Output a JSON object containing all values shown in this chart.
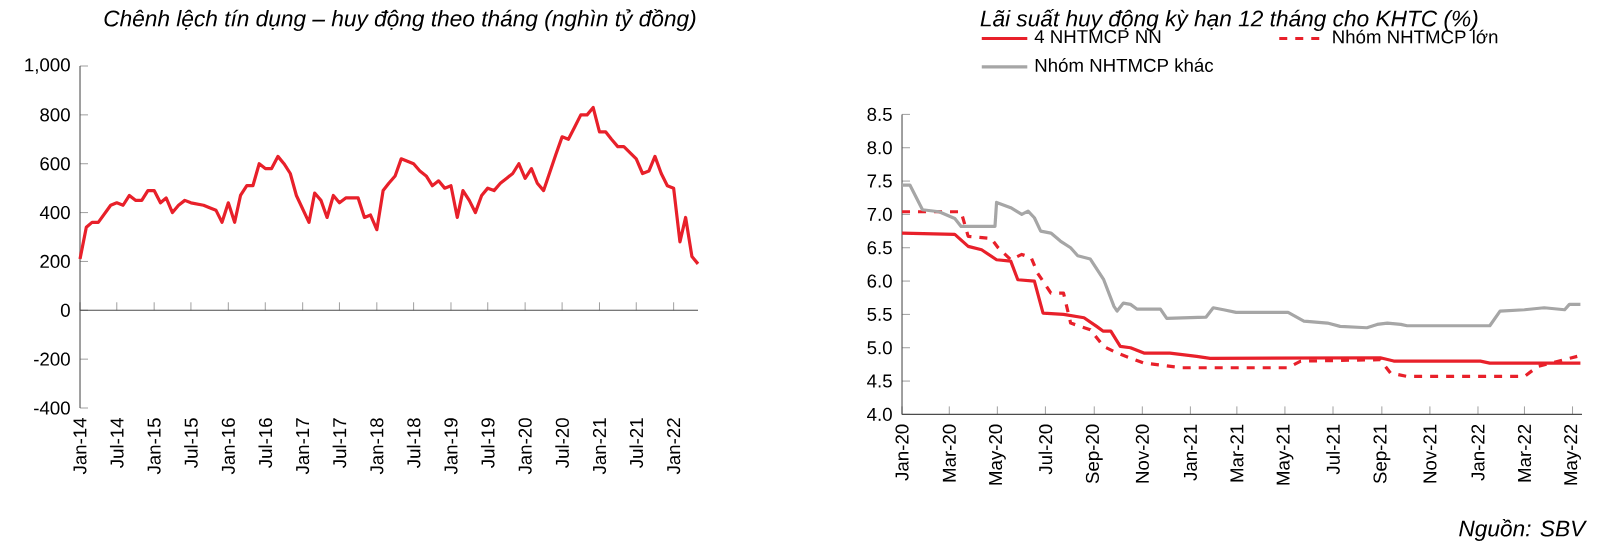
{
  "chart_data": [
    {
      "type": "line",
      "title": "Chênh lệch tín dụng – huy động theo tháng (nghìn tỷ đồng)",
      "color": "#e8202a",
      "x": [
        "2014-01",
        "2014-02",
        "2014-03",
        "2014-04",
        "2014-06",
        "2014-07",
        "2014-08",
        "2014-09",
        "2014-10",
        "2014-11",
        "2014-12",
        "2015-01",
        "2015-02",
        "2015-03",
        "2015-04",
        "2015-05",
        "2015-06",
        "2015-07",
        "2015-09",
        "2015-10",
        "2015-11",
        "2015-12",
        "2016-01",
        "2016-02",
        "2016-03",
        "2016-04",
        "2016-05",
        "2016-06",
        "2016-07",
        "2016-08",
        "2016-09",
        "2016-10",
        "2016-11",
        "2016-12",
        "2017-02",
        "2017-03",
        "2017-04",
        "2017-05",
        "2017-06",
        "2017-07",
        "2017-08",
        "2017-09",
        "2017-10",
        "2017-11",
        "2017-12",
        "2018-01",
        "2018-02",
        "2018-03",
        "2018-04",
        "2018-05",
        "2018-07",
        "2018-08",
        "2018-09",
        "2018-10",
        "2018-11",
        "2018-12",
        "2019-01",
        "2019-02",
        "2019-03",
        "2019-04",
        "2019-05",
        "2019-06",
        "2019-07",
        "2019-08",
        "2019-09",
        "2019-10",
        "2019-11",
        "2019-12",
        "2020-01",
        "2020-02",
        "2020-03",
        "2020-04",
        "2020-06",
        "2020-07",
        "2020-08",
        "2020-09",
        "2020-10",
        "2020-11",
        "2020-12",
        "2021-01",
        "2021-02",
        "2021-03",
        "2021-04",
        "2021-05",
        "2021-07",
        "2021-08",
        "2021-09",
        "2021-10",
        "2021-11",
        "2021-12",
        "2022-01",
        "2022-02",
        "2022-03",
        "2022-04",
        "2022-05"
      ],
      "values": [
        210,
        340,
        360,
        360,
        430,
        440,
        430,
        470,
        450,
        450,
        490,
        490,
        440,
        460,
        400,
        430,
        450,
        440,
        430,
        420,
        410,
        360,
        440,
        360,
        470,
        510,
        510,
        600,
        580,
        580,
        630,
        600,
        560,
        470,
        360,
        480,
        450,
        380,
        470,
        440,
        460,
        460,
        460,
        380,
        390,
        330,
        490,
        520,
        550,
        620,
        600,
        570,
        550,
        510,
        530,
        500,
        510,
        380,
        490,
        450,
        400,
        470,
        500,
        490,
        520,
        540,
        560,
        600,
        540,
        580,
        520,
        490,
        640,
        710,
        700,
        750,
        800,
        800,
        830,
        730,
        730,
        700,
        670,
        670,
        620,
        560,
        570,
        630,
        560,
        510,
        500,
        280,
        380,
        220,
        190
      ],
      "xlim": [
        "2014-01",
        "2022-05"
      ],
      "ylim": [
        -400,
        1000
      ],
      "xticks": [
        {
          "value": "2014-01",
          "label": "Jan-14"
        },
        {
          "value": "2014-07",
          "label": "Jul-14"
        },
        {
          "value": "2015-01",
          "label": "Jan-15"
        },
        {
          "value": "2015-07",
          "label": "Jul-15"
        },
        {
          "value": "2016-01",
          "label": "Jan-16"
        },
        {
          "value": "2016-07",
          "label": "Jul-16"
        },
        {
          "value": "2017-01",
          "label": "Jan-17"
        },
        {
          "value": "2017-07",
          "label": "Jul-17"
        },
        {
          "value": "2018-01",
          "label": "Jan-18"
        },
        {
          "value": "2018-07",
          "label": "Jul-18"
        },
        {
          "value": "2019-01",
          "label": "Jan-19"
        },
        {
          "value": "2019-07",
          "label": "Jul-19"
        },
        {
          "value": "2020-01",
          "label": "Jan-20"
        },
        {
          "value": "2020-07",
          "label": "Jul-20"
        },
        {
          "value": "2021-01",
          "label": "Jan-21"
        },
        {
          "value": "2021-07",
          "label": "Jul-21"
        },
        {
          "value": "2022-01",
          "label": "Jan-22"
        }
      ],
      "yticks": [
        -400,
        -200,
        0,
        200,
        400,
        600,
        800,
        {
          "value": 1000,
          "label": "1,000"
        }
      ]
    },
    {
      "type": "line",
      "title": "Lãi suất huy động kỳ hạn 12 tháng cho KHTC (%)",
      "legend": "top",
      "series": [
        {
          "name": "4 NHTMCP NN",
          "color": "#e8202a",
          "line_style": "solid",
          "x": [
            "2020-01-01",
            "2020-03-08",
            "2020-03-25",
            "2020-04-11",
            "2020-04-30",
            "2020-05-18",
            "2020-05-27",
            "2020-06-17",
            "2020-06-28",
            "2020-07-24",
            "2020-08-19",
            "2020-09-04",
            "2020-09-12",
            "2020-09-22",
            "2020-10-04",
            "2020-10-17",
            "2020-11-03",
            "2020-12-06",
            "2021-01-09",
            "2021-01-26",
            "2021-08-30",
            "2021-09-16",
            "2022-01-04",
            "2022-01-16",
            "2022-05-11"
          ],
          "values": [
            6.72,
            6.7,
            6.52,
            6.47,
            6.32,
            6.3,
            6.02,
            6.0,
            5.52,
            5.5,
            5.45,
            5.32,
            5.25,
            5.25,
            5.02,
            5.0,
            4.92,
            4.92,
            4.87,
            4.84,
            4.85,
            4.8,
            4.8,
            4.77,
            4.77
          ]
        },
        {
          "name": "Nhóm NHTMCP lớn",
          "color": "#e8202a",
          "line_style": "dashed",
          "x": [
            "2020-01-01",
            "2020-03-16",
            "2020-03-25",
            "2020-04-23",
            "2020-05-02",
            "2020-05-18",
            "2020-06-01",
            "2020-06-13",
            "2020-06-21",
            "2020-07-08",
            "2020-07-24",
            "2020-08-02",
            "2020-08-27",
            "2020-09-13",
            "2020-09-30",
            "2020-11-03",
            "2020-12-22",
            "2021-05-05",
            "2021-05-21",
            "2021-08-30",
            "2021-09-12",
            "2021-10-03",
            "2022-03-01",
            "2022-03-18",
            "2022-05-07"
          ],
          "values": [
            7.04,
            7.04,
            6.67,
            6.64,
            6.5,
            6.32,
            6.4,
            6.35,
            6.12,
            5.82,
            5.82,
            5.37,
            5.27,
            5.02,
            4.92,
            4.77,
            4.7,
            4.7,
            4.8,
            4.82,
            4.62,
            4.57,
            4.57,
            4.72,
            4.87
          ]
        },
        {
          "name": "Nhóm NHTMCP khác",
          "color": "#a6a6a6",
          "line_style": "solid",
          "x": [
            "2020-01-01",
            "2020-01-11",
            "2020-01-27",
            "2020-02-17",
            "2020-03-08",
            "2020-03-16",
            "2020-04-28",
            "2020-04-30",
            "2020-05-18",
            "2020-06-01",
            "2020-06-09",
            "2020-06-17",
            "2020-06-25",
            "2020-07-08",
            "2020-07-20",
            "2020-08-02",
            "2020-08-11",
            "2020-08-27",
            "2020-09-13",
            "2020-09-26",
            "2020-09-30",
            "2020-10-08",
            "2020-10-17",
            "2020-10-25",
            "2020-11-24",
            "2020-12-02",
            "2021-01-21",
            "2021-01-30",
            "2021-02-12",
            "2021-02-28",
            "2021-05-05",
            "2021-05-25",
            "2021-06-24",
            "2021-07-10",
            "2021-08-13",
            "2021-08-26",
            "2021-09-08",
            "2021-09-25",
            "2021-10-03",
            "2022-01-16",
            "2022-01-29",
            "2022-03-01",
            "2022-03-26",
            "2022-04-21",
            "2022-04-27",
            "2022-05-11"
          ],
          "values": [
            7.44,
            7.44,
            7.07,
            7.04,
            6.94,
            6.82,
            6.82,
            7.18,
            7.1,
            7.0,
            7.05,
            6.95,
            6.75,
            6.72,
            6.6,
            6.5,
            6.38,
            6.33,
            6.02,
            5.62,
            5.55,
            5.67,
            5.65,
            5.58,
            5.58,
            5.44,
            5.46,
            5.6,
            5.57,
            5.53,
            5.53,
            5.4,
            5.37,
            5.32,
            5.3,
            5.35,
            5.37,
            5.35,
            5.33,
            5.33,
            5.55,
            5.57,
            5.6,
            5.57,
            5.65,
            5.65
          ]
        }
      ],
      "xlim": [
        "2020-01-01",
        "2022-05-13"
      ],
      "ylim": [
        4.0,
        8.5
      ],
      "xticks": [
        {
          "value": "2020-01-01",
          "label": "Jan-20"
        },
        {
          "value": "2020-03-01",
          "label": "Mar-20"
        },
        {
          "value": "2020-05-01",
          "label": "May-20"
        },
        {
          "value": "2020-07-01",
          "label": "Jul-20"
        },
        {
          "value": "2020-09-01",
          "label": "Sep-20"
        },
        {
          "value": "2020-11-01",
          "label": "Nov-20"
        },
        {
          "value": "2021-01-01",
          "label": "Jan-21"
        },
        {
          "value": "2021-03-01",
          "label": "Mar-21"
        },
        {
          "value": "2021-05-01",
          "label": "May-21"
        },
        {
          "value": "2021-07-01",
          "label": "Jul-21"
        },
        {
          "value": "2021-09-01",
          "label": "Sep-21"
        },
        {
          "value": "2021-11-01",
          "label": "Nov-21"
        },
        {
          "value": "2022-01-01",
          "label": "Jan-22"
        },
        {
          "value": "2022-03-01",
          "label": "Mar-22"
        },
        {
          "value": "2022-05-01",
          "label": "May-22"
        }
      ],
      "yticks": [
        {
          "value": 4,
          "label": "4.0"
        },
        4.5,
        {
          "value": 5,
          "label": "5.0"
        },
        5.5,
        {
          "value": 6,
          "label": "6.0"
        },
        6.5,
        {
          "value": 7,
          "label": "7.0"
        },
        7.5,
        {
          "value": 8,
          "label": "8.0"
        },
        8.5
      ],
      "annotations": [
        "Nguồn: SBV"
      ]
    }
  ]
}
